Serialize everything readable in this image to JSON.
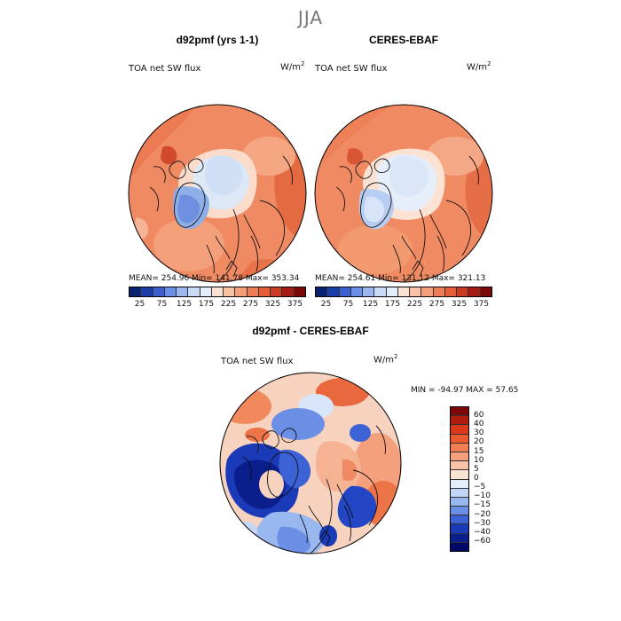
{
  "season": "JJA",
  "panels": [
    {
      "title": "d92pmf (yrs 1-1)",
      "label": "TOA net SW flux",
      "units": "W/m",
      "units_exp": "2",
      "stats": "MEAN= 254.96   Min= 141.78   Max= 353.34"
    },
    {
      "title": "CERES-EBAF",
      "label": "TOA net SW flux",
      "units": "W/m",
      "units_exp": "2",
      "stats": "MEAN= 254.61   Min= 131.12   Max= 321.13"
    }
  ],
  "diff": {
    "title": "d92pmf - CERES-EBAF",
    "label": "TOA net SW flux",
    "units": "W/m",
    "units_exp": "2",
    "stats": "MIN = -94.97 MAX =  57.65"
  },
  "colorbar_main": {
    "ticks": [
      "25",
      "75",
      "125",
      "175",
      "225",
      "275",
      "325",
      "375"
    ],
    "colors": [
      "#08206e",
      "#1a3ea8",
      "#3a5fd0",
      "#6a8fe6",
      "#9bb7f0",
      "#c9daf6",
      "#e4eefa",
      "#fbe1d2",
      "#f8c1a4",
      "#f49f7a",
      "#ee7d55",
      "#e45c38",
      "#cc3a22",
      "#a51a12",
      "#7a0808"
    ]
  },
  "colorbar_diff": {
    "ticks": [
      "60",
      "40",
      "30",
      "20",
      "15",
      "10",
      "5",
      "0",
      "−5",
      "−10",
      "−15",
      "−20",
      "−30",
      "−40",
      "−60"
    ],
    "colors": [
      "#7a0808",
      "#b01c10",
      "#d93a1c",
      "#ec5a30",
      "#f27e52",
      "#f5a07c",
      "#f8c3a6",
      "#fbe3d4",
      "#e4eefa",
      "#c3d6f6",
      "#9ab8f0",
      "#6c8fe6",
      "#3c62d6",
      "#1a3ab8",
      "#0a1e8c",
      "#020866"
    ]
  }
}
